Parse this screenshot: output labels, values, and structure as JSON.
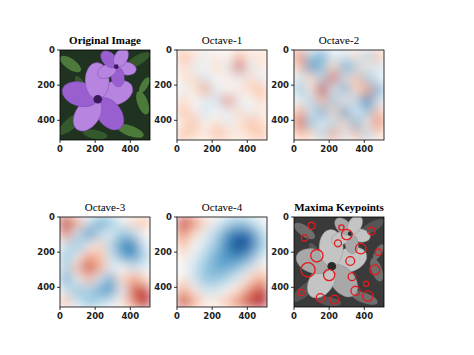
{
  "chart_data": [
    {
      "type": "image",
      "title": "Original Image",
      "xlim": [
        0,
        512
      ],
      "ylim": [
        512,
        0
      ],
      "xticks": [
        0,
        200,
        400
      ],
      "yticks": [
        0,
        200,
        400
      ]
    },
    {
      "type": "heatmap",
      "title": "Octave-1",
      "xlim": [
        0,
        512
      ],
      "ylim": [
        512,
        0
      ],
      "xticks": [
        0,
        200,
        400
      ],
      "yticks": [
        0,
        200,
        400
      ],
      "clim": [
        -1,
        1
      ],
      "cells": [
        [
          -0.3,
          -0.2,
          0.1,
          -0.1,
          0.0,
          -0.3,
          -0.1,
          -0.2
        ],
        [
          -0.2,
          0.1,
          0.0,
          -0.2,
          0.1,
          -0.6,
          0.1,
          -0.1
        ],
        [
          -0.1,
          -0.2,
          0.2,
          0.0,
          -0.1,
          0.1,
          -0.2,
          0.1
        ],
        [
          0.1,
          -0.1,
          -0.4,
          0.1,
          0.0,
          -0.1,
          -0.2,
          -0.3
        ],
        [
          -0.2,
          0.0,
          0.1,
          0.2,
          -0.5,
          0.1,
          0.0,
          -0.2
        ],
        [
          -0.3,
          -0.1,
          0.2,
          0.0,
          0.1,
          -0.2,
          0.1,
          -0.1
        ],
        [
          -0.1,
          -0.3,
          0.0,
          -0.2,
          0.1,
          -0.1,
          -0.3,
          -0.2
        ],
        [
          -0.3,
          -0.2,
          -0.1,
          -0.3,
          -0.2,
          -0.1,
          -0.2,
          -0.3
        ]
      ]
    },
    {
      "type": "heatmap",
      "title": "Octave-2",
      "xlim": [
        0,
        512
      ],
      "ylim": [
        512,
        0
      ],
      "xticks": [
        0,
        200,
        400
      ],
      "yticks": [
        0,
        200,
        400
      ],
      "clim": [
        -1,
        1
      ],
      "cells": [
        [
          -0.5,
          0.3,
          0.5,
          0.1,
          0.2,
          -0.2,
          0.3,
          -0.3
        ],
        [
          -0.3,
          0.6,
          0.4,
          -0.2,
          0.5,
          0.3,
          -0.1,
          0.2
        ],
        [
          0.2,
          -0.2,
          0.3,
          -0.6,
          0.2,
          -0.3,
          0.4,
          0.1
        ],
        [
          0.4,
          -0.1,
          -0.8,
          0.1,
          0.5,
          -0.2,
          -0.4,
          0.5
        ],
        [
          0.1,
          0.3,
          -0.3,
          0.4,
          -0.1,
          0.3,
          0.7,
          0.2
        ],
        [
          -0.4,
          0.2,
          0.5,
          -0.2,
          0.6,
          0.1,
          0.4,
          -0.3
        ],
        [
          -0.6,
          0.4,
          0.1,
          0.3,
          -0.2,
          0.5,
          -0.1,
          -0.5
        ],
        [
          -0.3,
          -0.2,
          0.3,
          -0.4,
          0.2,
          -0.3,
          0.3,
          -0.2
        ]
      ]
    },
    {
      "type": "heatmap",
      "title": "Octave-3",
      "xlim": [
        0,
        512
      ],
      "ylim": [
        512,
        0
      ],
      "xticks": [
        0,
        200,
        400
      ],
      "yticks": [
        0,
        200,
        400
      ],
      "clim": [
        -1,
        1
      ],
      "cells": [
        [
          -0.8,
          -0.4,
          0.2,
          0.5,
          0.4,
          0.1,
          -0.2,
          -0.3
        ],
        [
          -0.5,
          0.2,
          0.6,
          0.3,
          0.1,
          0.4,
          0.3,
          0.0
        ],
        [
          0.2,
          0.4,
          0.1,
          -0.2,
          0.3,
          0.6,
          0.7,
          0.2
        ],
        [
          0.4,
          0.1,
          -0.4,
          -0.3,
          0.2,
          0.5,
          0.6,
          0.3
        ],
        [
          0.3,
          -0.3,
          -0.7,
          -0.4,
          0.1,
          0.0,
          0.2,
          0.1
        ],
        [
          0.5,
          0.1,
          -0.3,
          0.2,
          0.5,
          -0.2,
          -0.4,
          -0.2
        ],
        [
          0.2,
          0.4,
          0.3,
          0.5,
          0.6,
          0.1,
          -0.6,
          -0.7
        ],
        [
          -0.3,
          0.2,
          0.4,
          0.3,
          0.2,
          -0.1,
          -0.5,
          -0.8
        ]
      ]
    },
    {
      "type": "heatmap",
      "title": "Octave-4",
      "xlim": [
        0,
        512
      ],
      "ylim": [
        512,
        0
      ],
      "xticks": [
        0,
        200,
        400
      ],
      "yticks": [
        0,
        200,
        400
      ],
      "clim": [
        -1,
        1
      ],
      "cells": [
        [
          -0.7,
          -0.5,
          -0.2,
          0.1,
          0.3,
          0.4,
          0.3,
          0.1
        ],
        [
          -0.5,
          -0.2,
          0.1,
          0.3,
          0.6,
          0.8,
          0.7,
          0.3
        ],
        [
          -0.3,
          0.0,
          0.2,
          0.4,
          0.7,
          0.9,
          0.8,
          0.4
        ],
        [
          -0.1,
          0.1,
          0.3,
          0.5,
          0.6,
          0.7,
          0.5,
          0.2
        ],
        [
          0.0,
          0.2,
          0.4,
          0.5,
          0.5,
          0.4,
          0.2,
          -0.1
        ],
        [
          -0.1,
          0.2,
          0.4,
          0.4,
          0.3,
          0.1,
          -0.2,
          -0.4
        ],
        [
          -0.4,
          -0.1,
          0.2,
          0.2,
          0.0,
          -0.2,
          -0.5,
          -0.7
        ],
        [
          -0.7,
          -0.4,
          -0.1,
          -0.1,
          -0.3,
          -0.5,
          -0.7,
          -0.8
        ]
      ]
    },
    {
      "type": "keypoints",
      "title": "Maxima Keypoints",
      "xlim": [
        0,
        512
      ],
      "ylim": [
        512,
        0
      ],
      "xticks": [
        0,
        200,
        400
      ],
      "yticks": [
        0,
        200,
        400
      ],
      "color": "#e41a1c",
      "x": [
        300,
        320,
        250,
        80,
        130,
        380,
        440,
        460,
        60,
        200,
        350,
        420,
        150,
        270,
        480,
        100,
        330,
        230,
        410,
        40
      ],
      "y": [
        100,
        250,
        150,
        300,
        220,
        180,
        80,
        300,
        120,
        330,
        420,
        450,
        460,
        60,
        200,
        50,
        340,
        470,
        380,
        430
      ],
      "size": [
        30,
        25,
        20,
        40,
        35,
        30,
        22,
        28,
        18,
        32,
        26,
        30,
        24,
        15,
        18,
        20,
        22,
        25,
        15,
        18
      ]
    }
  ]
}
